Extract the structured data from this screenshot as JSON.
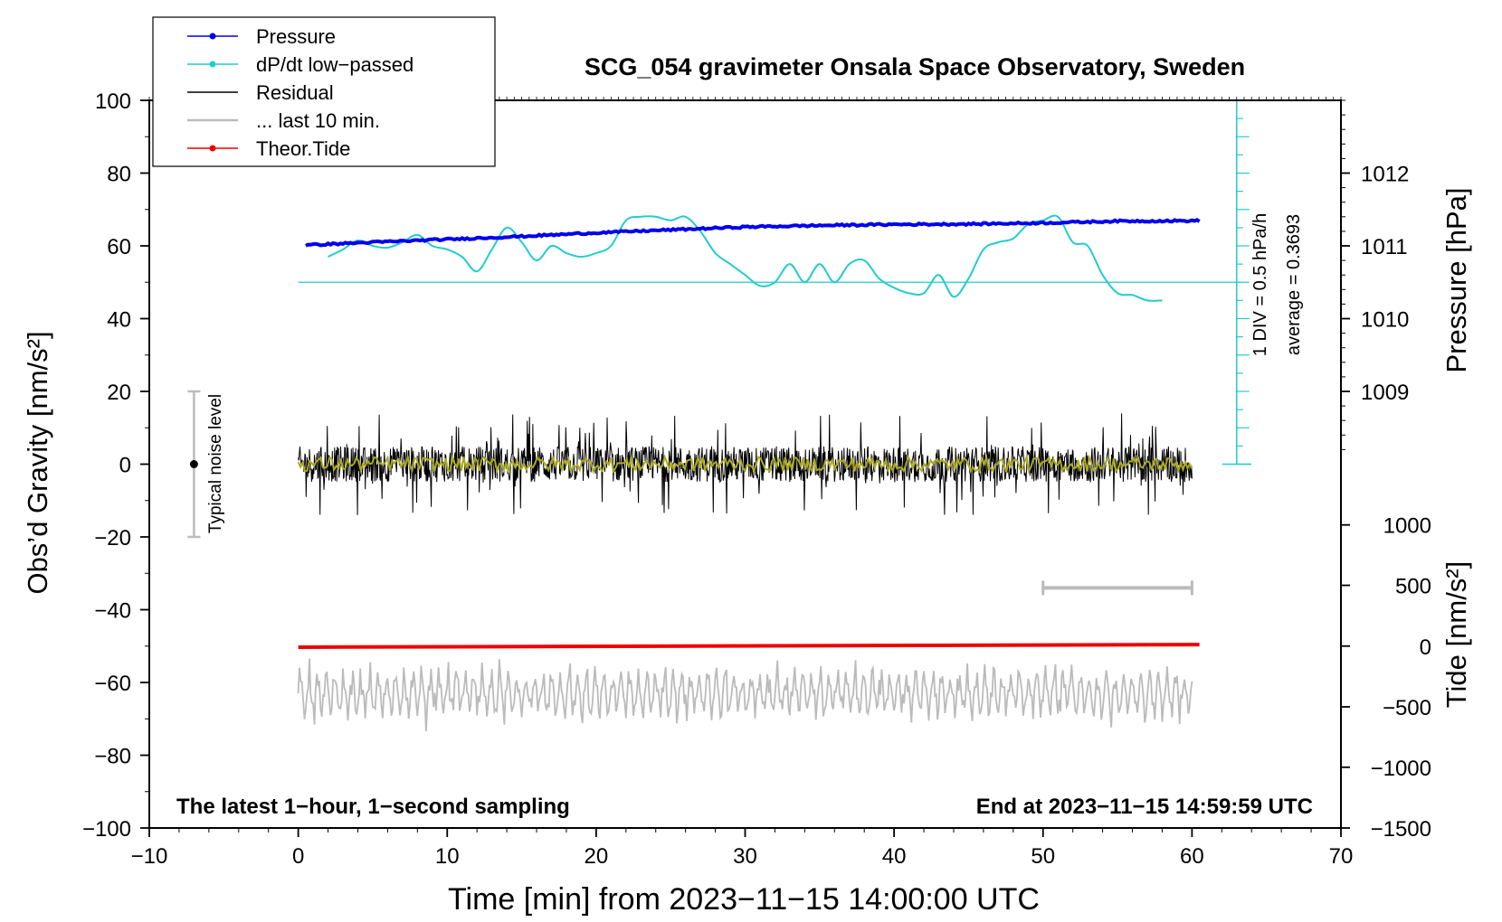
{
  "chart_data": {
    "type": "line",
    "title": "SCG_054 gravimeter Onsala Space Observatory, Sweden",
    "xlabel": "Time [min] from 2023−11−15 14:00:00 UTC",
    "ylabel_left": "Obs’d Gravity [nm/s²]",
    "ylabel_pressure": "Pressure [hPa]",
    "ylabel_tide": "Tide [nm/s²]",
    "xlim": [
      -10,
      70
    ],
    "ylim": [
      -100,
      100
    ],
    "x_ticks": [
      "−10",
      "0",
      "10",
      "20",
      "30",
      "40",
      "50",
      "60",
      "70"
    ],
    "y_ticks": [
      "−100",
      "−80",
      "−60",
      "−40",
      "−20",
      "0",
      "20",
      "40",
      "60",
      "80",
      "100"
    ],
    "pressure_axis": {
      "ticks": [
        "1009",
        "1010",
        "1011",
        "1012"
      ],
      "tick_values": [
        1009,
        1010,
        1011,
        1012
      ],
      "maps_to_gravity": [
        20,
        40,
        60,
        80
      ]
    },
    "tide_axis": {
      "ticks": [
        "1000",
        "500",
        "0",
        "−500",
        "−1000",
        "−1500"
      ],
      "tick_values": [
        1000,
        500,
        0,
        -500,
        -1000,
        -1500
      ],
      "maps_to_gravity": [
        -16.7,
        -33.3,
        -50,
        -66.7,
        -83.3,
        -100
      ]
    },
    "legend": {
      "position": "top-left",
      "entries": [
        {
          "label": "Pressure",
          "color": "#0000ee",
          "marker": true
        },
        {
          "label": "dP/dt low−passed",
          "color": "#22cccc",
          "marker": true
        },
        {
          "label": "Residual",
          "color": "#000000",
          "marker": false
        },
        {
          "label": "... last 10 min.",
          "color": "#bbbbbb",
          "marker": false
        },
        {
          "label": "Theor.Tide",
          "color": "#ee0000",
          "marker": true
        }
      ]
    },
    "dpdt_scale": {
      "label1": "1 DIV = 0.5 hPa/h",
      "label2": "average = 0.3693",
      "x": 63,
      "baseline": 50,
      "bottom": 0,
      "top": 100
    },
    "noise_bar": {
      "label": "Typical noise level",
      "x": -7,
      "low": -20,
      "high": 20,
      "center": 0
    },
    "last10_bar": {
      "x_start": 50,
      "x_end": 60,
      "y": -34
    },
    "footer_left": "The latest 1−hour, 1−second sampling",
    "footer_right": "End at 2023−11−15 14:59:59 UTC",
    "series": [
      {
        "name": "Pressure",
        "color": "#0000ee",
        "x": [
          0.5,
          5,
          10,
          15,
          20,
          25,
          30,
          35,
          40,
          45,
          50,
          55,
          60.5
        ],
        "y": [
          60.2,
          61.0,
          61.8,
          62.6,
          63.6,
          64.4,
          65.2,
          65.6,
          65.9,
          66.0,
          66.3,
          66.8,
          66.9
        ]
      },
      {
        "name": "dP/dt low-passed",
        "color": "#22cccc",
        "x": [
          2,
          3,
          4,
          5,
          6,
          7,
          8,
          9,
          10,
          11,
          12,
          13,
          14,
          15,
          16,
          17,
          18,
          19,
          20,
          21,
          22,
          23,
          24,
          25,
          26,
          27,
          28,
          29,
          30,
          31,
          32,
          33,
          34,
          35,
          36,
          37,
          38,
          39,
          40,
          41,
          42,
          43,
          44,
          45,
          46,
          47,
          48,
          49,
          50,
          51,
          52,
          53,
          54,
          55,
          56,
          57,
          58
        ],
        "y": [
          57,
          59,
          61.5,
          60,
          59.5,
          61,
          63,
          60,
          59,
          57,
          53,
          59,
          65,
          61,
          56,
          60,
          58,
          57,
          58,
          60,
          67,
          68,
          68,
          67,
          68,
          64,
          58,
          55,
          52,
          49,
          50,
          55,
          50,
          55,
          50,
          55,
          56,
          51,
          48.5,
          47,
          47,
          52,
          46,
          51,
          59,
          61,
          62,
          66,
          67,
          68,
          61,
          60,
          52,
          47,
          46.5,
          45,
          45
        ]
      },
      {
        "name": "Residual",
        "color": "#000000",
        "x_range": [
          0,
          60
        ],
        "mean": 0,
        "amplitude": 14
      },
      {
        "name": "Residual smoothed",
        "color": "#aaaa22",
        "x_range": [
          0,
          60
        ],
        "mean": 0,
        "amplitude": 2
      },
      {
        "name": "... last 10 min.",
        "color": "#bbbbbb",
        "x_range": [
          0,
          60
        ],
        "mean": -63,
        "amplitude": 12
      },
      {
        "name": "Theor.Tide",
        "color": "#ee0000",
        "x": [
          0,
          60.5
        ],
        "y": [
          -50.3,
          -49.6
        ]
      }
    ]
  }
}
